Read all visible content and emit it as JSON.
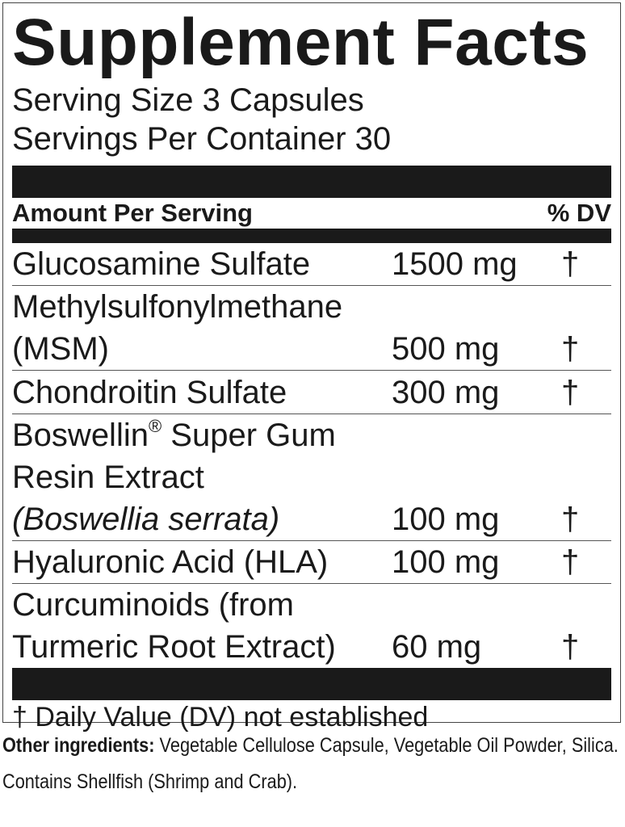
{
  "title": "Supplement Facts",
  "serving_size": "Serving Size 3 Capsules",
  "servings_per_container": "Servings Per Container 30",
  "header": {
    "amount": "Amount Per Serving",
    "dv": "% DV"
  },
  "ingredients": [
    {
      "lines": [
        "Glucosamine Sulfate"
      ],
      "amount": "1500 mg",
      "dv": "†"
    },
    {
      "lines": [
        "Methylsulfonylmethane",
        "(MSM)"
      ],
      "amount": "500 mg",
      "dv": "†"
    },
    {
      "lines": [
        "Chondroitin Sulfate"
      ],
      "amount": "300 mg",
      "dv": "†"
    },
    {
      "lines": [
        "Boswellin",
        "®",
        " Super Gum",
        "Resin Extract",
        "(Boswellia serrata)"
      ],
      "amount": "100 mg",
      "dv": "†"
    },
    {
      "lines": [
        "Hyaluronic Acid (HLA)"
      ],
      "amount": "100 mg",
      "dv": "†"
    },
    {
      "lines": [
        "Curcuminoids (from",
        "Turmeric Root Extract)"
      ],
      "amount": "60 mg",
      "dv": "†"
    }
  ],
  "footnote": "† Daily Value (DV) not established",
  "other_ingredients": {
    "label": "Other ingredients:",
    "text": " Vegetable Cellulose Capsule, Vegetable Oil Powder, Silica."
  },
  "allergen": "Contains Shellfish (Shrimp and Crab)."
}
